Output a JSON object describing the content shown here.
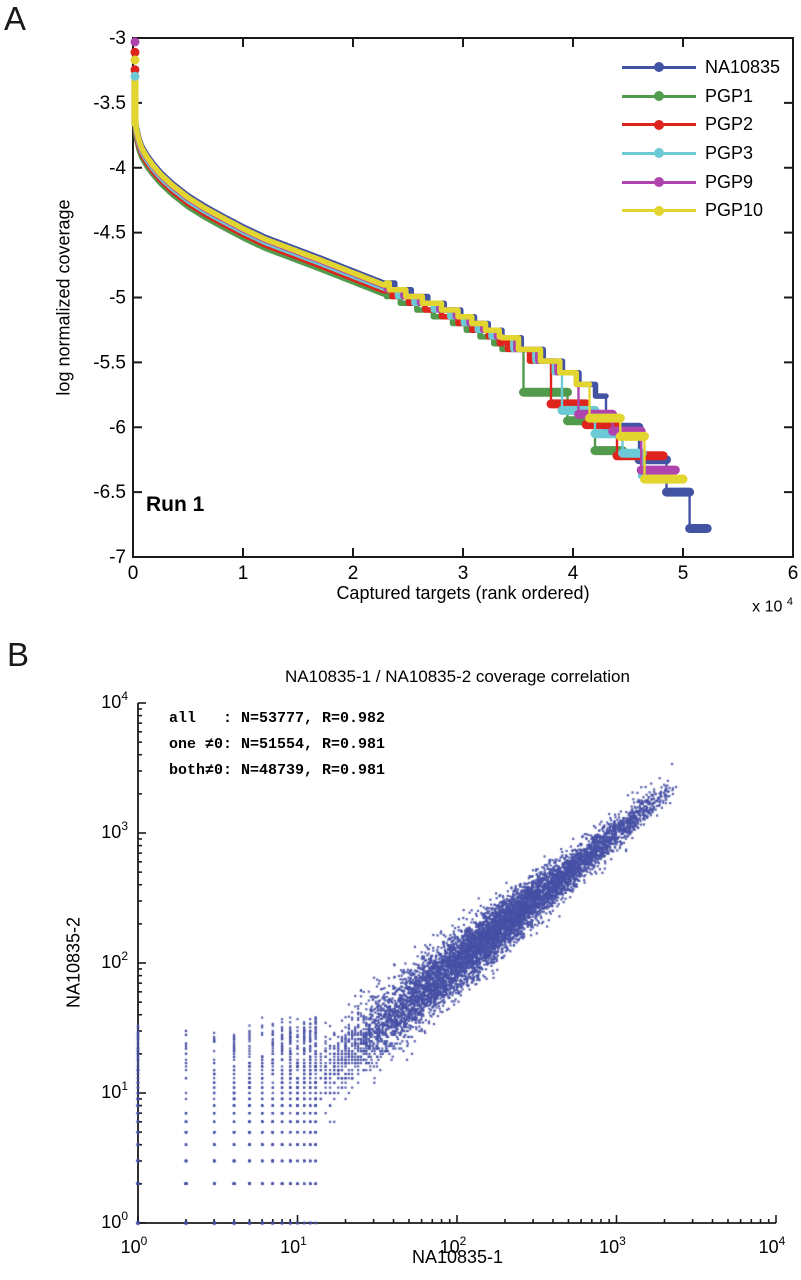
{
  "panel_a": {
    "label": "A",
    "run_label": "Run 1",
    "ylabel": "log normalized coverage",
    "xlabel": "Captured targets (rank ordered)",
    "x_scale_note": {
      "prefix": "x 10",
      "exp": "4"
    },
    "axes": {
      "x_ticks": [
        "0",
        "1",
        "2",
        "3",
        "4",
        "5",
        "6"
      ],
      "y_ticks": [
        "-3",
        "-3.5",
        "-4",
        "-4.5",
        "-5",
        "-5.5",
        "-6",
        "-6.5",
        "-7"
      ]
    },
    "legend": [
      {
        "label": "NA10835",
        "color": "#4353a4"
      },
      {
        "label": "PGP1",
        "color": "#529a4c"
      },
      {
        "label": "PGP2",
        "color": "#df231d"
      },
      {
        "label": "PGP3",
        "color": "#6cc9d6"
      },
      {
        "label": "PGP9",
        "color": "#b044ae"
      },
      {
        "label": "PGP10",
        "color": "#e2d52f"
      }
    ]
  },
  "panel_b": {
    "label": "B",
    "title": "NA10835-1 / NA10835-2 coverage correlation",
    "xlabel": "NA10835-1",
    "ylabel": "NA10835-2",
    "axes": {
      "x_tick_base": "10",
      "x_tick_exponents": [
        "0",
        "1",
        "2",
        "3",
        "4"
      ],
      "y_tick_exponents": [
        "0",
        "1",
        "2",
        "3",
        "4"
      ]
    },
    "stats_lines": [
      "all   : N=53777, R=0.982",
      "one ≠0: N=51554, R=0.981",
      "both≠0: N=48739, R=0.981"
    ]
  },
  "chart_data": [
    {
      "type": "line",
      "title": "",
      "xlabel": "Captured targets (rank ordered)",
      "ylabel": "log normalized coverage",
      "annotation": "Run 1",
      "xlim": [
        0,
        60000
      ],
      "ylim": [
        -7,
        -3
      ],
      "x_unit": 10000,
      "grid": false,
      "legend_position": "top-right",
      "base_curve_anchors": [
        [
          0.018,
          -3.62
        ],
        [
          0.03,
          -3.72
        ],
        [
          0.05,
          -3.8
        ],
        [
          0.08,
          -3.87
        ],
        [
          0.12,
          -3.93
        ],
        [
          0.18,
          -4.0
        ],
        [
          0.25,
          -4.07
        ],
        [
          0.35,
          -4.15
        ],
        [
          0.5,
          -4.25
        ],
        [
          0.65,
          -4.33
        ],
        [
          0.8,
          -4.4
        ],
        [
          1.0,
          -4.49
        ],
        [
          1.2,
          -4.57
        ],
        [
          1.45,
          -4.65
        ],
        [
          1.7,
          -4.73
        ],
        [
          2.0,
          -4.83
        ],
        [
          2.3,
          -4.93
        ],
        [
          2.6,
          -5.03
        ],
        [
          2.9,
          -5.13
        ],
        [
          3.2,
          -5.25
        ],
        [
          3.5,
          -5.38
        ],
        [
          3.7,
          -5.47
        ],
        [
          3.9,
          -5.57
        ],
        [
          4.1,
          -5.69
        ],
        [
          4.3,
          -5.82
        ],
        [
          4.45,
          -5.93
        ]
      ],
      "series": [
        {
          "name": "NA10835",
          "color": "#4353a4",
          "start_top": -3.35,
          "offset": 0.035,
          "base_end": 4.3,
          "tail": [
            [
              4.3,
              4.6,
              -6.0
            ],
            [
              4.6,
              4.85,
              -6.25
            ],
            [
              4.85,
              5.06,
              -6.5
            ],
            [
              5.06,
              5.22,
              -6.78
            ]
          ]
        },
        {
          "name": "PGP1",
          "color": "#529a4c",
          "start_top": -3.33,
          "offset": -0.05,
          "base_end": 3.55,
          "tail": [
            [
              3.55,
              3.95,
              -5.73
            ],
            [
              3.95,
              4.2,
              -5.95
            ],
            [
              4.2,
              4.45,
              -6.18
            ]
          ]
        },
        {
          "name": "PGP2",
          "color": "#df231d",
          "start_top": -3.3,
          "offset": -0.025,
          "base_end": 3.8,
          "tail": [
            [
              3.8,
              4.12,
              -5.82
            ],
            [
              4.12,
              4.4,
              -5.98
            ],
            [
              4.4,
              4.82,
              -6.22
            ]
          ]
        },
        {
          "name": "PGP3",
          "color": "#6cc9d6",
          "start_top": -3.3,
          "offset": -0.005,
          "base_end": 3.9,
          "tail": [
            [
              3.9,
              4.2,
              -5.87
            ],
            [
              4.2,
              4.45,
              -6.05
            ],
            [
              4.45,
              4.63,
              -6.2
            ],
            [
              4.63,
              4.75,
              -6.37
            ]
          ]
        },
        {
          "name": "PGP9",
          "color": "#b044ae",
          "start_top": -3.32,
          "offset": 0.012,
          "base_end": 4.05,
          "tail": [
            [
              4.05,
              4.36,
              -5.9
            ],
            [
              4.36,
              4.62,
              -6.03
            ],
            [
              4.62,
              4.93,
              -6.33
            ]
          ]
        },
        {
          "name": "PGP10",
          "color": "#e2d52f",
          "start_top": -3.26,
          "offset": 0.02,
          "base_end": 4.15,
          "tail": [
            [
              4.15,
              4.43,
              -5.93
            ],
            [
              4.43,
              4.65,
              -6.07
            ],
            [
              4.65,
              5.0,
              -6.4
            ]
          ]
        }
      ],
      "start_markers": [
        {
          "series": "PGP9",
          "y": -3.03
        },
        {
          "series": "PGP2",
          "y": -3.11
        },
        {
          "series": "PGP10",
          "y": -3.17
        },
        {
          "series": "PGP2",
          "y": -3.245
        },
        {
          "series": "PGP3",
          "y": -3.295
        }
      ]
    },
    {
      "type": "scatter",
      "title": "NA10835-1 / NA10835-2 coverage correlation",
      "xlabel": "NA10835-1",
      "ylabel": "NA10835-2",
      "xscale": "log",
      "yscale": "log",
      "xlim": [
        1,
        10000
      ],
      "ylim": [
        1,
        10000
      ],
      "point_color": "#4750a5",
      "stats": [
        {
          "subset": "all",
          "N": 53777,
          "R": 0.982
        },
        {
          "subset": "one ≠0",
          "N": 51554,
          "R": 0.981
        },
        {
          "subset": "both≠0",
          "N": 48739,
          "R": 0.981
        }
      ],
      "cloud": {
        "main_n": 7200,
        "u_min": 1.06,
        "u_span": 2.32,
        "sigma_a": 0.215,
        "sigma_b": 0.05,
        "sigma_min": 0.05,
        "x_integer_below": 28,
        "y_integer_below": 32,
        "grid_n": 1500,
        "grid_x_max": 13,
        "grid_sigma": 0.45,
        "grid_y_max": 38,
        "col_x1_n": 230,
        "col_x1_ymax_log": 1.52,
        "row_y1_n": 170,
        "row_y1_xmax_log": 1.12,
        "seed": 42
      },
      "outliers": [
        [
          2230,
          3400
        ],
        [
          1650,
          2400
        ],
        [
          1430,
          2250
        ],
        [
          1260,
          2050
        ],
        [
          1180,
          1950
        ]
      ]
    }
  ]
}
